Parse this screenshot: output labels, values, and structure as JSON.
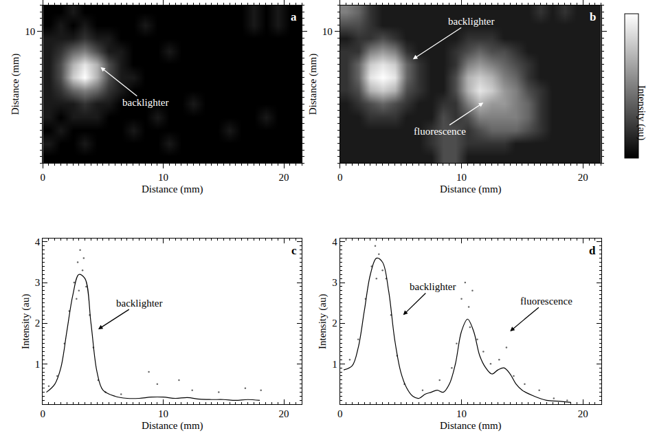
{
  "chart_data": [
    {
      "type": "heatmap",
      "panel": "a",
      "x_label": "Distance (mm)",
      "y_label": "Distance (mm)",
      "xlim": [
        0,
        21.5
      ],
      "xticks": [
        0,
        10,
        20
      ],
      "ylim": [
        0,
        12
      ],
      "yticks": [
        10
      ],
      "zlim": [
        0,
        10
      ],
      "x": [
        0.5,
        1.5,
        2.5,
        3.5,
        4.5,
        5.5,
        6.5,
        7.5,
        8.5,
        9.5,
        10.5,
        11.5,
        12.5,
        13.5,
        14.5,
        15.5,
        16.5,
        17.5,
        18.5,
        19.5,
        20.5,
        21.5
      ],
      "y": [
        0.5,
        1.5,
        2.5,
        3.5,
        4.5,
        5.5,
        6.5,
        7.5,
        8.5,
        9.5,
        10.5,
        11.5
      ],
      "z": [
        [
          0,
          0,
          0,
          0,
          0,
          0,
          0,
          0,
          0,
          0,
          0,
          0,
          0,
          0,
          0,
          0,
          0,
          0,
          0,
          0,
          0,
          0
        ],
        [
          1,
          0,
          0,
          1,
          0,
          0,
          0,
          0,
          0,
          0,
          1,
          0,
          0,
          0,
          0,
          0,
          0,
          0,
          0,
          0,
          0,
          0
        ],
        [
          0,
          1,
          0,
          0,
          0,
          0,
          0,
          1,
          0,
          0,
          0,
          0,
          0,
          0,
          0,
          1,
          0,
          0,
          0,
          0,
          0,
          0
        ],
        [
          1,
          0,
          1,
          1,
          1,
          0,
          0,
          0,
          0,
          1,
          0,
          0,
          0,
          0,
          0,
          0,
          0,
          0,
          1,
          0,
          0,
          0
        ],
        [
          1,
          1,
          1,
          2,
          1,
          1,
          0,
          0,
          0,
          0,
          0,
          0,
          1,
          0,
          0,
          0,
          0,
          0,
          0,
          0,
          0,
          0
        ],
        [
          1,
          2,
          4,
          5,
          4,
          2,
          1,
          0,
          0,
          0,
          0,
          0,
          0,
          0,
          0,
          0,
          0,
          0,
          0,
          0,
          0,
          0
        ],
        [
          1,
          3,
          8,
          10,
          7,
          3,
          1,
          1,
          0,
          0,
          0,
          0,
          0,
          0,
          0,
          0,
          0,
          0,
          0,
          0,
          0,
          0
        ],
        [
          1,
          3,
          7,
          9,
          7,
          3,
          1,
          0,
          0,
          0,
          0,
          0,
          0,
          0,
          0,
          0,
          0,
          0,
          0,
          0,
          0,
          0
        ],
        [
          1,
          2,
          4,
          5,
          3,
          1,
          1,
          0,
          0,
          0,
          1,
          0,
          0,
          0,
          0,
          0,
          0,
          0,
          0,
          0,
          0,
          0
        ],
        [
          1,
          1,
          1,
          2,
          1,
          1,
          0,
          0,
          0,
          0,
          0,
          0,
          0,
          0,
          0,
          0,
          0,
          0,
          0,
          0,
          0,
          0
        ],
        [
          0,
          1,
          0,
          1,
          0,
          0,
          0,
          0,
          1,
          0,
          0,
          0,
          0,
          0,
          0,
          0,
          0,
          1,
          0,
          1,
          0,
          0
        ],
        [
          0,
          0,
          1,
          0,
          0,
          0,
          0,
          0,
          0,
          0,
          0,
          0,
          0,
          0,
          0,
          0,
          0,
          1,
          0,
          1,
          0,
          0
        ]
      ],
      "annotations": [
        {
          "text": "backlighter"
        }
      ]
    },
    {
      "type": "heatmap",
      "panel": "b",
      "x_label": "Distance (mm)",
      "y_label": "Distance (mm)",
      "xlim": [
        0,
        21.5
      ],
      "xticks": [
        0,
        10,
        20
      ],
      "ylim": [
        0,
        12
      ],
      "yticks": [
        10
      ],
      "zlim": [
        0,
        10
      ],
      "colorbar_title": "Intensity (au)",
      "x": [
        0.5,
        1.5,
        2.5,
        3.5,
        4.5,
        5.5,
        6.5,
        7.5,
        8.5,
        9.5,
        10.5,
        11.5,
        12.5,
        13.5,
        14.5,
        15.5,
        16.5,
        17.5,
        18.5,
        19.5,
        20.5,
        21.5
      ],
      "y": [
        0.5,
        1.5,
        2.5,
        3.5,
        4.5,
        5.5,
        6.5,
        7.5,
        8.5,
        9.5,
        10.5,
        11.5
      ],
      "z": [
        [
          1,
          1,
          1,
          1,
          1,
          1,
          1,
          1,
          3,
          3,
          1,
          1,
          1,
          1,
          1,
          1,
          1,
          1,
          1,
          1,
          1,
          1
        ],
        [
          1,
          1,
          1,
          1,
          1,
          1,
          1,
          2,
          3,
          3,
          2,
          2,
          2,
          2,
          1,
          1,
          1,
          1,
          1,
          1,
          1,
          1
        ],
        [
          1,
          1,
          1,
          1,
          1,
          1,
          1,
          2,
          3,
          3,
          2,
          3,
          4,
          4,
          4,
          3,
          2,
          1,
          1,
          1,
          1,
          1
        ],
        [
          1,
          1,
          2,
          2,
          2,
          1,
          1,
          1,
          3,
          2,
          3,
          5,
          5,
          5,
          5,
          4,
          2,
          1,
          1,
          1,
          1,
          1
        ],
        [
          1,
          2,
          3,
          4,
          3,
          2,
          1,
          1,
          2,
          2,
          5,
          7,
          6,
          6,
          5,
          4,
          2,
          1,
          1,
          1,
          1,
          1
        ],
        [
          2,
          3,
          7,
          8,
          7,
          3,
          2,
          1,
          1,
          3,
          7,
          9,
          8,
          6,
          5,
          3,
          2,
          1,
          1,
          1,
          1,
          1
        ],
        [
          2,
          4,
          9,
          10,
          9,
          4,
          2,
          1,
          1,
          3,
          7,
          8,
          7,
          5,
          4,
          2,
          1,
          1,
          1,
          1,
          1,
          1
        ],
        [
          2,
          4,
          8,
          9,
          8,
          4,
          2,
          1,
          1,
          2,
          5,
          6,
          5,
          4,
          3,
          2,
          1,
          1,
          1,
          1,
          1,
          1
        ],
        [
          2,
          2,
          5,
          6,
          5,
          2,
          1,
          1,
          1,
          2,
          3,
          4,
          3,
          3,
          2,
          1,
          1,
          1,
          1,
          1,
          1,
          1
        ],
        [
          1,
          2,
          2,
          3,
          2,
          1,
          1,
          1,
          1,
          1,
          2,
          2,
          2,
          1,
          1,
          1,
          1,
          1,
          1,
          1,
          1,
          1
        ],
        [
          3,
          3,
          2,
          1,
          1,
          1,
          1,
          1,
          1,
          1,
          1,
          1,
          1,
          1,
          1,
          1,
          1,
          1,
          1,
          1,
          1,
          1
        ],
        [
          5,
          4,
          2,
          1,
          1,
          1,
          1,
          1,
          1,
          1,
          1,
          1,
          1,
          1,
          1,
          1,
          2,
          1,
          2,
          1,
          1,
          1
        ]
      ],
      "annotations": [
        {
          "text": "backlighter"
        },
        {
          "text": "fluorescence"
        }
      ]
    },
    {
      "type": "line",
      "panel": "c",
      "x_label": "Distance (mm)",
      "y_label": "Intensity (au)",
      "xlim": [
        0,
        21.5
      ],
      "xticks": [
        0,
        10,
        20
      ],
      "ylim": [
        0,
        4.08
      ],
      "yticks": [
        1,
        2,
        3,
        4
      ],
      "series": [
        {
          "type": "scatter",
          "marker": "dot",
          "color": "#666666",
          "x": [
            0.5,
            1.2,
            1.8,
            2.2,
            2.6,
            2.9,
            3.1,
            3.3,
            3.6,
            3.9,
            4.2,
            4.6,
            5.2,
            6.5,
            8.8,
            9.5,
            11.3,
            12.4,
            14.6,
            16.8,
            18.1,
            2.8,
            3.4,
            3.0
          ],
          "values": [
            0.45,
            0.7,
            1.5,
            2.3,
            3.0,
            3.5,
            3.8,
            3.3,
            2.9,
            2.2,
            1.4,
            0.6,
            0.3,
            0.25,
            0.8,
            0.5,
            0.6,
            0.35,
            0.3,
            0.4,
            0.35,
            2.6,
            3.6,
            2.8
          ]
        },
        {
          "type": "line",
          "line_style": "solid",
          "color": "#000000",
          "x": [
            0.3,
            1,
            1.5,
            2,
            2.5,
            3,
            3.5,
            4,
            4.5,
            5,
            6,
            7,
            8,
            9,
            10,
            11,
            12,
            13,
            14,
            15,
            16,
            17,
            18
          ],
          "values": [
            0.3,
            0.5,
            0.9,
            1.8,
            2.7,
            3.2,
            3.1,
            2.0,
            0.8,
            0.35,
            0.2,
            0.15,
            0.15,
            0.18,
            0.18,
            0.15,
            0.17,
            0.13,
            0.12,
            0.12,
            0.1,
            0.12,
            0.1
          ]
        }
      ],
      "annotations": [
        {
          "text": "backlighter"
        }
      ]
    },
    {
      "type": "line",
      "panel": "d",
      "x_label": "Distance (mm)",
      "y_label": "Intensity (au)",
      "xlim": [
        0,
        21.5
      ],
      "xticks": [
        0,
        10,
        20
      ],
      "ylim": [
        0,
        4.08
      ],
      "yticks": [
        1,
        2,
        3,
        4
      ],
      "series": [
        {
          "type": "scatter",
          "marker": "dot",
          "color": "#666666",
          "x": [
            0.8,
            1.5,
            2.1,
            2.6,
            2.9,
            3.2,
            3.5,
            3.8,
            4.2,
            4.7,
            5.3,
            6.8,
            8.2,
            9.6,
            10.0,
            10.3,
            10.6,
            10.9,
            11.3,
            11.8,
            12.4,
            13.1,
            13.7,
            14.3,
            15.2,
            16.4,
            17.6,
            18.7,
            3.0,
            10.7,
            9.2
          ],
          "values": [
            1.1,
            1.6,
            2.6,
            3.4,
            3.9,
            3.7,
            3.3,
            3.1,
            2.2,
            1.2,
            0.5,
            0.35,
            0.6,
            1.5,
            2.6,
            3.0,
            2.4,
            2.8,
            1.6,
            1.3,
            1.0,
            1.1,
            1.4,
            0.7,
            0.5,
            0.35,
            0.15,
            0.1,
            3.1,
            1.9,
            0.9
          ]
        },
        {
          "type": "line",
          "line_style": "solid",
          "color": "#000000",
          "x": [
            0.3,
            1,
            1.5,
            2,
            2.5,
            3,
            3.5,
            4,
            4.5,
            5,
            5.5,
            6,
            6.5,
            7,
            7.5,
            8,
            8.5,
            9,
            9.5,
            10,
            10.5,
            11,
            11.5,
            12,
            12.5,
            13,
            13.5,
            14,
            14.5,
            15,
            16,
            17,
            18,
            19
          ],
          "values": [
            0.85,
            0.95,
            1.4,
            2.3,
            3.2,
            3.6,
            3.5,
            2.8,
            1.6,
            0.8,
            0.4,
            0.2,
            0.15,
            0.25,
            0.3,
            0.35,
            0.3,
            0.5,
            1.0,
            1.8,
            2.1,
            1.8,
            1.2,
            0.9,
            0.75,
            0.85,
            0.9,
            0.75,
            0.5,
            0.35,
            0.2,
            0.1,
            0.08,
            0.05
          ]
        }
      ],
      "annotations": [
        {
          "text": "backlighter"
        },
        {
          "text": "fluorescence"
        }
      ]
    }
  ]
}
